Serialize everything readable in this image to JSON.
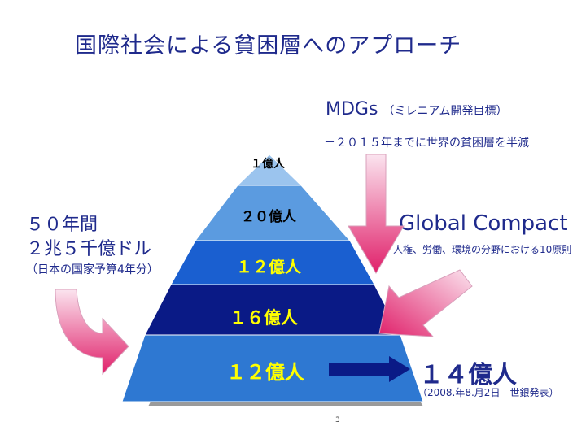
{
  "title": "国際社会による貧困層へのアプローチ",
  "mdgs": {
    "label": "MDGs",
    "subtitle": "（ミレニアム開発目標）",
    "description": "－２０１５年までに世界の貧困層を半減"
  },
  "left": {
    "years": "５０年間",
    "amount": "２兆５千億ドル",
    "note": "（日本の国家予算4年分）"
  },
  "global_compact": {
    "label": "Global Compact",
    "description": "人権、労働、環境の分野における10原則"
  },
  "pyramid": {
    "tiers": [
      {
        "label": "１億人",
        "color": "#9bc4ee",
        "text_color": "#000000"
      },
      {
        "label": "２０億人",
        "color": "#5b9be0",
        "text_color": "#000000"
      },
      {
        "label": "１２億人",
        "color": "#1a5fd0",
        "text_color": "#ffff00"
      },
      {
        "label": "１６億人",
        "color": "#0a1a86",
        "text_color": "#ffff00"
      },
      {
        "label": "１２億人",
        "color": "#2e78d2",
        "text_color": "#ffff00"
      }
    ]
  },
  "right": {
    "big": "１４億人",
    "note": "（2008.年8.月2日　世銀発表）"
  },
  "page_number": "3",
  "colors": {
    "text": "#1f2a8c",
    "arrow_gradient_top": "#fbe4ef",
    "arrow_gradient_bottom": "#e0206a",
    "tier_text_yellow": "#ffff00"
  }
}
